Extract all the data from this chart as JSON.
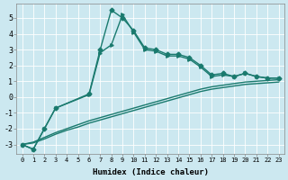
{
  "xlabel": "Humidex (Indice chaleur)",
  "bg_color": "#cce8f0",
  "grid_color": "#ffffff",
  "line_color": "#1a7a6e",
  "xlim": [
    -0.5,
    23.5
  ],
  "ylim": [
    -3.6,
    5.9
  ],
  "xticks": [
    0,
    1,
    2,
    3,
    4,
    5,
    6,
    7,
    8,
    9,
    10,
    11,
    12,
    13,
    14,
    15,
    16,
    17,
    18,
    19,
    20,
    21,
    22,
    23
  ],
  "yticks": [
    -3,
    -2,
    -1,
    0,
    1,
    2,
    3,
    4,
    5
  ],
  "line1_x": [
    0,
    1,
    2,
    3,
    6,
    7,
    8,
    9,
    10,
    11,
    12,
    13,
    14,
    15,
    16,
    17,
    18,
    19,
    20,
    21,
    22,
    23
  ],
  "line1_y": [
    -3.0,
    -3.3,
    -2.0,
    -0.7,
    0.2,
    3.0,
    5.5,
    5.0,
    4.2,
    3.1,
    3.0,
    2.7,
    2.7,
    2.5,
    2.0,
    1.4,
    1.5,
    1.3,
    1.5,
    1.3,
    1.2,
    1.2
  ],
  "line2_x": [
    0,
    1,
    2,
    3,
    6,
    7,
    8,
    9,
    10,
    11,
    12,
    13,
    14,
    15,
    16,
    17,
    18,
    19,
    20,
    21,
    22,
    23
  ],
  "line2_y": [
    -3.0,
    -3.3,
    -2.0,
    -0.7,
    0.15,
    2.8,
    3.3,
    5.2,
    4.1,
    3.0,
    2.9,
    2.6,
    2.6,
    2.4,
    1.9,
    1.3,
    1.4,
    1.3,
    1.5,
    1.3,
    1.2,
    1.2
  ],
  "line3_x": [
    0,
    1,
    2,
    3,
    4,
    5,
    6,
    7,
    8,
    9,
    10,
    11,
    12,
    13,
    14,
    15,
    16,
    17,
    18,
    19,
    20,
    21,
    22,
    23
  ],
  "line3_y": [
    -3.0,
    -2.85,
    -2.55,
    -2.25,
    -2.0,
    -1.75,
    -1.5,
    -1.3,
    -1.1,
    -0.9,
    -0.7,
    -0.5,
    -0.3,
    -0.1,
    0.1,
    0.3,
    0.5,
    0.65,
    0.75,
    0.85,
    0.95,
    1.0,
    1.05,
    1.1
  ],
  "line4_x": [
    0,
    1,
    2,
    3,
    4,
    5,
    6,
    7,
    8,
    9,
    10,
    11,
    12,
    13,
    14,
    15,
    16,
    17,
    18,
    19,
    20,
    21,
    22,
    23
  ],
  "line4_y": [
    -3.0,
    -2.9,
    -2.65,
    -2.35,
    -2.1,
    -1.9,
    -1.65,
    -1.45,
    -1.25,
    -1.05,
    -0.85,
    -0.65,
    -0.45,
    -0.25,
    -0.05,
    0.15,
    0.35,
    0.5,
    0.6,
    0.7,
    0.8,
    0.85,
    0.9,
    0.95
  ],
  "marker_size": 2.5,
  "line_width": 1.0
}
